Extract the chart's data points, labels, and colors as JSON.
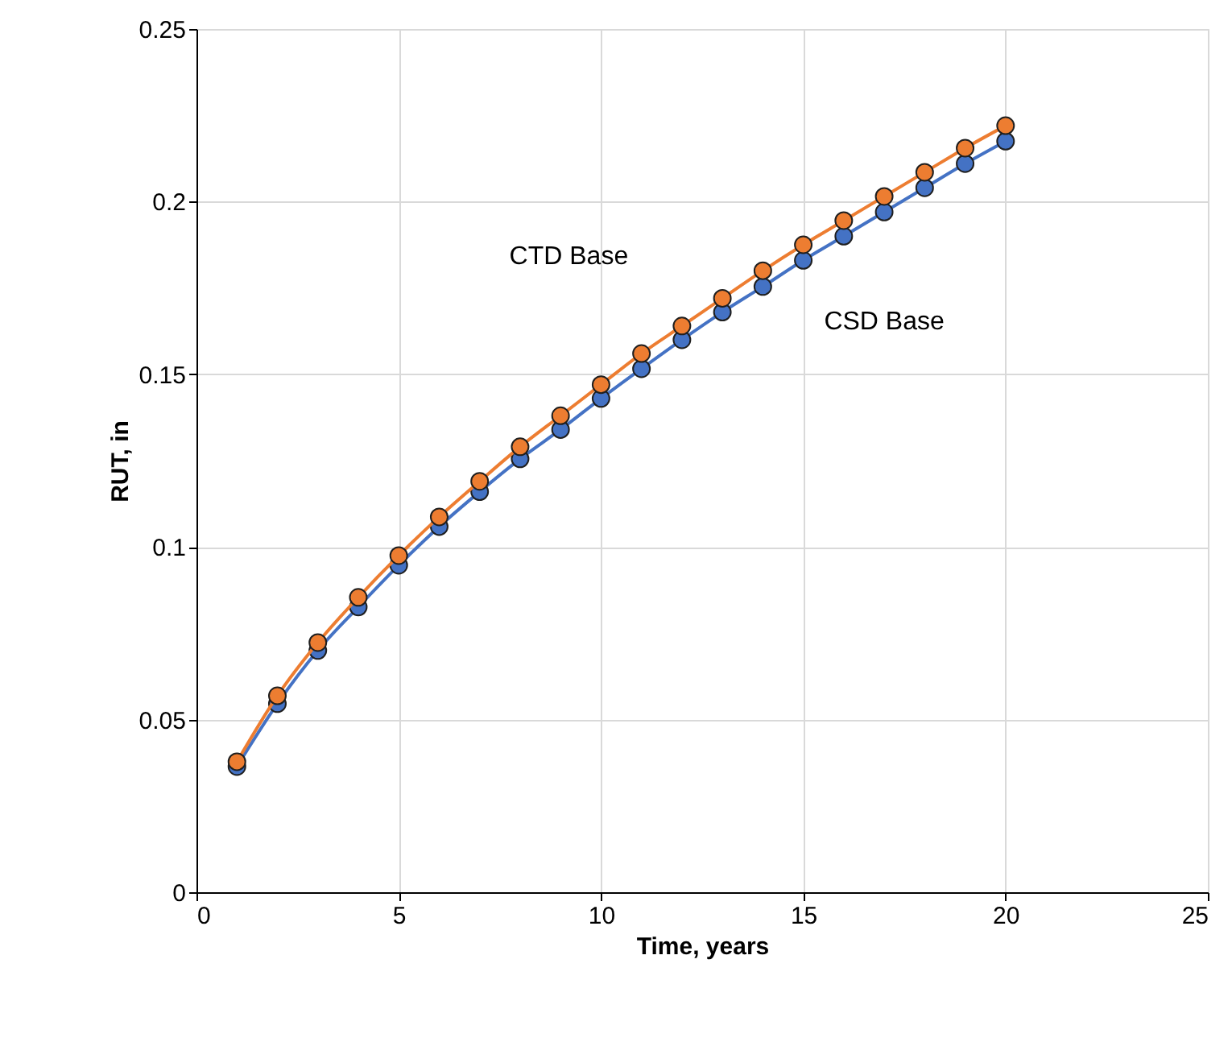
{
  "chart_data": {
    "type": "line",
    "xlabel": "Time, years",
    "ylabel": "RUT, in",
    "x": [
      1,
      2,
      3,
      4,
      5,
      6,
      7,
      8,
      9,
      10,
      11,
      12,
      13,
      14,
      15,
      16,
      17,
      18,
      19,
      20
    ],
    "series": [
      {
        "name": "CSD Base",
        "color": "#4472c4",
        "values": [
          0.0364,
          0.0546,
          0.07,
          0.0826,
          0.0947,
          0.1059,
          0.116,
          0.1255,
          0.134,
          0.143,
          0.1516,
          0.16,
          0.168,
          0.1754,
          0.183,
          0.19,
          0.197,
          0.204,
          0.211,
          0.2175
        ]
      },
      {
        "name": "CTD Base",
        "color": "#ed7d31",
        "values": [
          0.0378,
          0.0569,
          0.0723,
          0.0854,
          0.0975,
          0.1087,
          0.119,
          0.129,
          0.138,
          0.147,
          0.156,
          0.164,
          0.172,
          0.18,
          0.1875,
          0.1945,
          0.2015,
          0.2085,
          0.2155,
          0.222
        ]
      }
    ],
    "xlim": [
      0,
      25
    ],
    "xticks": [
      0,
      5,
      10,
      15,
      20,
      25
    ],
    "ylim": [
      0,
      0.25
    ],
    "yticks": [
      0,
      0.05,
      0.1,
      0.15,
      0.2,
      0.25
    ],
    "grid": true,
    "marker": "circle",
    "line_style": "solid"
  }
}
